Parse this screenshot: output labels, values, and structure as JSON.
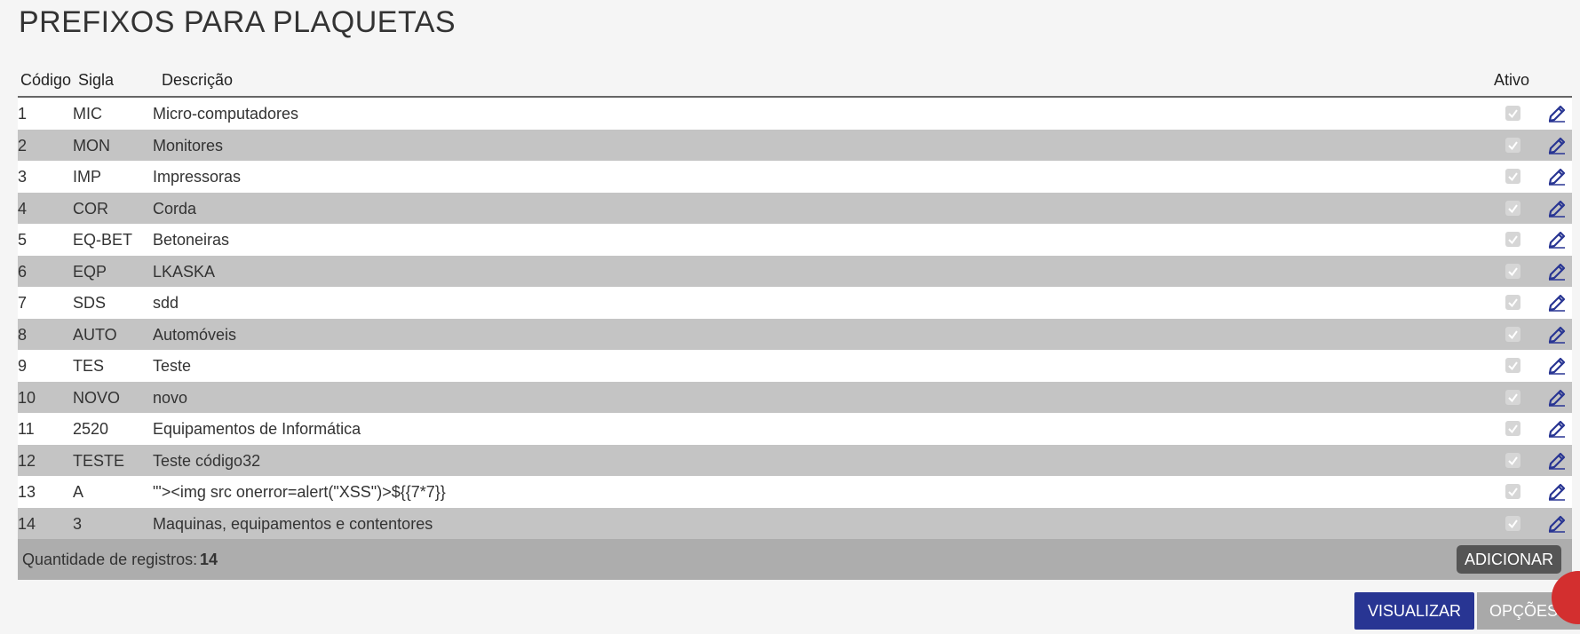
{
  "header": {
    "title": "PREFIXOS PARA PLAQUETAS"
  },
  "table": {
    "columns": [
      "Código",
      "Sigla",
      "Descrição",
      "Ativo"
    ],
    "rows": [
      [
        "1",
        "MIC",
        "Micro-computadores"
      ],
      [
        "2",
        "MON",
        "Monitores"
      ],
      [
        "3",
        "IMP",
        "Impressoras"
      ],
      [
        "4",
        "COR",
        "Corda"
      ],
      [
        "5",
        "EQ-BET",
        "Betoneiras"
      ],
      [
        "6",
        "EQP",
        "LKASKA"
      ],
      [
        "7",
        "SDS",
        "sdd"
      ],
      [
        "8",
        "AUTO",
        "Automóveis"
      ],
      [
        "9",
        "TES",
        "Teste"
      ],
      [
        "10",
        "NOVO",
        "novo"
      ],
      [
        "11",
        "2520",
        "Equipamentos de Informática"
      ],
      [
        "12",
        "TESTE",
        "Teste código32"
      ],
      [
        "13",
        "A",
        "\"'><img src onerror=alert(\"XSS\")>${{7*7}}"
      ],
      [
        "14",
        "3",
        "Maquinas, equipamentos e contentores"
      ]
    ],
    "footer": {
      "label": "Quantidade de registros:",
      "count": "14",
      "add_button": "ADICIONAR"
    }
  },
  "buttons": {
    "view": "VISUALIZAR",
    "options": "OPÇÕES"
  }
}
